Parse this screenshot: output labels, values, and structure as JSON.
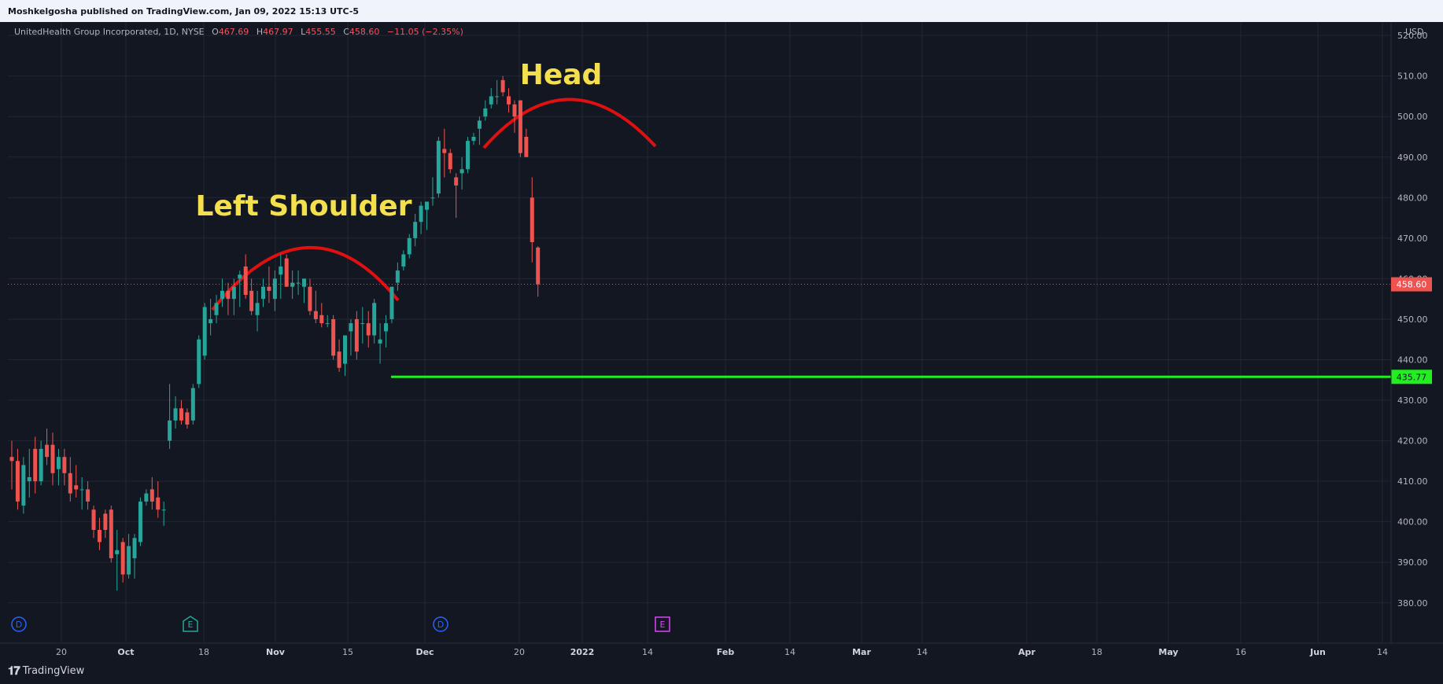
{
  "topbar": {
    "publisher": "Moshkelgosha published on TradingView.com, Jan 09, 2022 15:13 UTC-5"
  },
  "legend": {
    "title": "UnitedHealth Group Incorporated, 1D, NYSE",
    "o_key": "O",
    "o_val": "467.69",
    "h_key": "H",
    "h_val": "467.97",
    "l_key": "L",
    "l_val": "455.55",
    "c_key": "C",
    "c_val": "458.60",
    "change": "−11.05 (−2.35%)"
  },
  "footer": {
    "logo": "𝟏𝟕",
    "brand": "TradingView"
  },
  "colors": {
    "bg": "#131722",
    "grid": "#232733",
    "up": "#26a69a",
    "down": "#ef5350",
    "support": "#22ee22",
    "pattern": "#e01010",
    "annotation": "#f4e04d",
    "axisText": "#b2b5be"
  },
  "chart_data": {
    "type": "candlestick",
    "title": "UnitedHealth Group Incorporated, 1D, NYSE",
    "currency": "USD",
    "ylim": [
      372,
      521
    ],
    "yticks": [
      "380.00",
      "390.00",
      "400.00",
      "410.00",
      "420.00",
      "430.00",
      "440.00",
      "450.00",
      "460.00",
      "470.00",
      "480.00",
      "490.00",
      "500.00",
      "510.00",
      "520.00"
    ],
    "xticks": [
      "20",
      "Oct",
      "18",
      "Nov",
      "15",
      "Dec",
      "20",
      "2022",
      "14",
      "Feb",
      "14",
      "Mar",
      "14",
      "Apr",
      "18",
      "May",
      "16",
      "Jun",
      "14"
    ],
    "xtick_bold": [
      "Oct",
      "Nov",
      "Dec",
      "2022",
      "Feb",
      "Mar",
      "Apr",
      "May",
      "Jun"
    ],
    "candles": [
      {
        "o": 416,
        "h": 420,
        "l": 408,
        "c": 415
      },
      {
        "o": 415,
        "h": 418,
        "l": 403,
        "c": 405
      },
      {
        "o": 404,
        "h": 416,
        "l": 402,
        "c": 414
      },
      {
        "o": 410,
        "h": 418,
        "l": 406,
        "c": 411
      },
      {
        "o": 418,
        "h": 421,
        "l": 407,
        "c": 410
      },
      {
        "o": 410,
        "h": 420,
        "l": 409,
        "c": 418
      },
      {
        "o": 419,
        "h": 423,
        "l": 414,
        "c": 416
      },
      {
        "o": 419,
        "h": 422,
        "l": 409,
        "c": 412
      },
      {
        "o": 413,
        "h": 418,
        "l": 409,
        "c": 416
      },
      {
        "o": 416,
        "h": 418,
        "l": 409,
        "c": 412
      },
      {
        "o": 412,
        "h": 416,
        "l": 405,
        "c": 407
      },
      {
        "o": 409,
        "h": 414,
        "l": 406,
        "c": 408
      },
      {
        "o": 408,
        "h": 411,
        "l": 403,
        "c": 408
      },
      {
        "o": 408,
        "h": 410,
        "l": 403,
        "c": 405
      },
      {
        "o": 403,
        "h": 404,
        "l": 396,
        "c": 398
      },
      {
        "o": 398,
        "h": 401,
        "l": 393,
        "c": 395
      },
      {
        "o": 402,
        "h": 403,
        "l": 396,
        "c": 398
      },
      {
        "o": 403,
        "h": 404,
        "l": 390,
        "c": 391
      },
      {
        "o": 392,
        "h": 398,
        "l": 383,
        "c": 393
      },
      {
        "o": 395,
        "h": 396,
        "l": 385,
        "c": 387
      },
      {
        "o": 387,
        "h": 397,
        "l": 386,
        "c": 394
      },
      {
        "o": 391,
        "h": 397,
        "l": 386,
        "c": 396
      },
      {
        "o": 395,
        "h": 406,
        "l": 394,
        "c": 405
      },
      {
        "o": 405,
        "h": 408,
        "l": 404,
        "c": 407
      },
      {
        "o": 408,
        "h": 411,
        "l": 403,
        "c": 405
      },
      {
        "o": 406,
        "h": 410,
        "l": 401,
        "c": 403
      },
      {
        "o": 403,
        "h": 405,
        "l": 399,
        "c": 403
      },
      {
        "o": 420,
        "h": 434,
        "l": 418,
        "c": 425
      },
      {
        "o": 425,
        "h": 431,
        "l": 423,
        "c": 428
      },
      {
        "o": 428,
        "h": 430,
        "l": 424,
        "c": 425
      },
      {
        "o": 427,
        "h": 428,
        "l": 423,
        "c": 424
      },
      {
        "o": 425,
        "h": 434,
        "l": 424,
        "c": 433
      },
      {
        "o": 434,
        "h": 446,
        "l": 433,
        "c": 445
      },
      {
        "o": 441,
        "h": 454,
        "l": 440,
        "c": 453
      },
      {
        "o": 449,
        "h": 455,
        "l": 446,
        "c": 450
      },
      {
        "o": 451,
        "h": 456,
        "l": 449,
        "c": 454
      },
      {
        "o": 455,
        "h": 460,
        "l": 453,
        "c": 457
      },
      {
        "o": 457,
        "h": 459,
        "l": 451,
        "c": 455
      },
      {
        "o": 455,
        "h": 460,
        "l": 451,
        "c": 458
      },
      {
        "o": 460,
        "h": 462,
        "l": 453,
        "c": 461
      },
      {
        "o": 463,
        "h": 466,
        "l": 455,
        "c": 456
      },
      {
        "o": 457,
        "h": 460,
        "l": 451,
        "c": 452
      },
      {
        "o": 451,
        "h": 457,
        "l": 447,
        "c": 454
      },
      {
        "o": 455,
        "h": 460,
        "l": 453,
        "c": 458
      },
      {
        "o": 458,
        "h": 463,
        "l": 454,
        "c": 457
      },
      {
        "o": 455,
        "h": 462,
        "l": 452,
        "c": 460
      },
      {
        "o": 461,
        "h": 466,
        "l": 455,
        "c": 463
      },
      {
        "o": 465,
        "h": 466,
        "l": 458,
        "c": 458
      },
      {
        "o": 458,
        "h": 462,
        "l": 455,
        "c": 459
      },
      {
        "o": 459,
        "h": 462,
        "l": 456,
        "c": 459
      },
      {
        "o": 458,
        "h": 460,
        "l": 454,
        "c": 460
      },
      {
        "o": 458,
        "h": 460,
        "l": 451,
        "c": 452
      },
      {
        "o": 452,
        "h": 457,
        "l": 449,
        "c": 450
      },
      {
        "o": 451,
        "h": 454,
        "l": 448,
        "c": 449
      },
      {
        "o": 449,
        "h": 451,
        "l": 448,
        "c": 449
      },
      {
        "o": 450,
        "h": 451,
        "l": 440,
        "c": 441
      },
      {
        "o": 442,
        "h": 445,
        "l": 437,
        "c": 438
      },
      {
        "o": 439,
        "h": 446,
        "l": 436,
        "c": 446
      },
      {
        "o": 447,
        "h": 450,
        "l": 441,
        "c": 449
      },
      {
        "o": 450,
        "h": 452,
        "l": 440,
        "c": 442
      },
      {
        "o": 449,
        "h": 453,
        "l": 444,
        "c": 449
      },
      {
        "o": 449,
        "h": 452,
        "l": 443,
        "c": 446
      },
      {
        "o": 446,
        "h": 455,
        "l": 444,
        "c": 454
      },
      {
        "o": 444,
        "h": 449,
        "l": 439,
        "c": 445
      },
      {
        "o": 447,
        "h": 451,
        "l": 443,
        "c": 449
      },
      {
        "o": 450,
        "h": 458,
        "l": 449,
        "c": 458
      },
      {
        "o": 459,
        "h": 464,
        "l": 457,
        "c": 462
      },
      {
        "o": 463,
        "h": 467,
        "l": 462,
        "c": 466
      },
      {
        "o": 466,
        "h": 471,
        "l": 465,
        "c": 470
      },
      {
        "o": 470,
        "h": 476,
        "l": 468,
        "c": 474
      },
      {
        "o": 474,
        "h": 479,
        "l": 471,
        "c": 478
      },
      {
        "o": 477,
        "h": 479,
        "l": 472,
        "c": 479
      },
      {
        "o": 480,
        "h": 485,
        "l": 478,
        "c": 480
      },
      {
        "o": 481,
        "h": 495,
        "l": 480,
        "c": 494
      },
      {
        "o": 492,
        "h": 497,
        "l": 485,
        "c": 491
      },
      {
        "o": 491,
        "h": 492,
        "l": 486,
        "c": 487
      },
      {
        "o": 485,
        "h": 486,
        "l": 475,
        "c": 483
      },
      {
        "o": 486,
        "h": 490,
        "l": 482,
        "c": 487
      },
      {
        "o": 487,
        "h": 495,
        "l": 486,
        "c": 494
      },
      {
        "o": 494,
        "h": 496,
        "l": 493,
        "c": 495
      },
      {
        "o": 497,
        "h": 500,
        "l": 493,
        "c": 499
      },
      {
        "o": 500,
        "h": 504,
        "l": 499,
        "c": 502
      },
      {
        "o": 503,
        "h": 507,
        "l": 502,
        "c": 505
      },
      {
        "o": 505,
        "h": 509,
        "l": 503,
        "c": 505
      },
      {
        "o": 509,
        "h": 510,
        "l": 505,
        "c": 506
      },
      {
        "o": 505,
        "h": 507,
        "l": 501,
        "c": 503
      },
      {
        "o": 503,
        "h": 504,
        "l": 496,
        "c": 500
      },
      {
        "o": 504,
        "h": 504,
        "l": 490,
        "c": 491
      },
      {
        "o": 495,
        "h": 497,
        "l": 490,
        "c": 490
      },
      {
        "o": 480,
        "h": 485,
        "l": 464,
        "c": 469
      },
      {
        "o": 467.69,
        "h": 467.97,
        "l": 455.55,
        "c": 458.6
      }
    ],
    "current_price": "458.60",
    "support_level": "435.77",
    "annotations": [
      "Left Shoulder",
      "Head"
    ],
    "event_markers": [
      "D",
      "E",
      "D",
      "E"
    ]
  }
}
